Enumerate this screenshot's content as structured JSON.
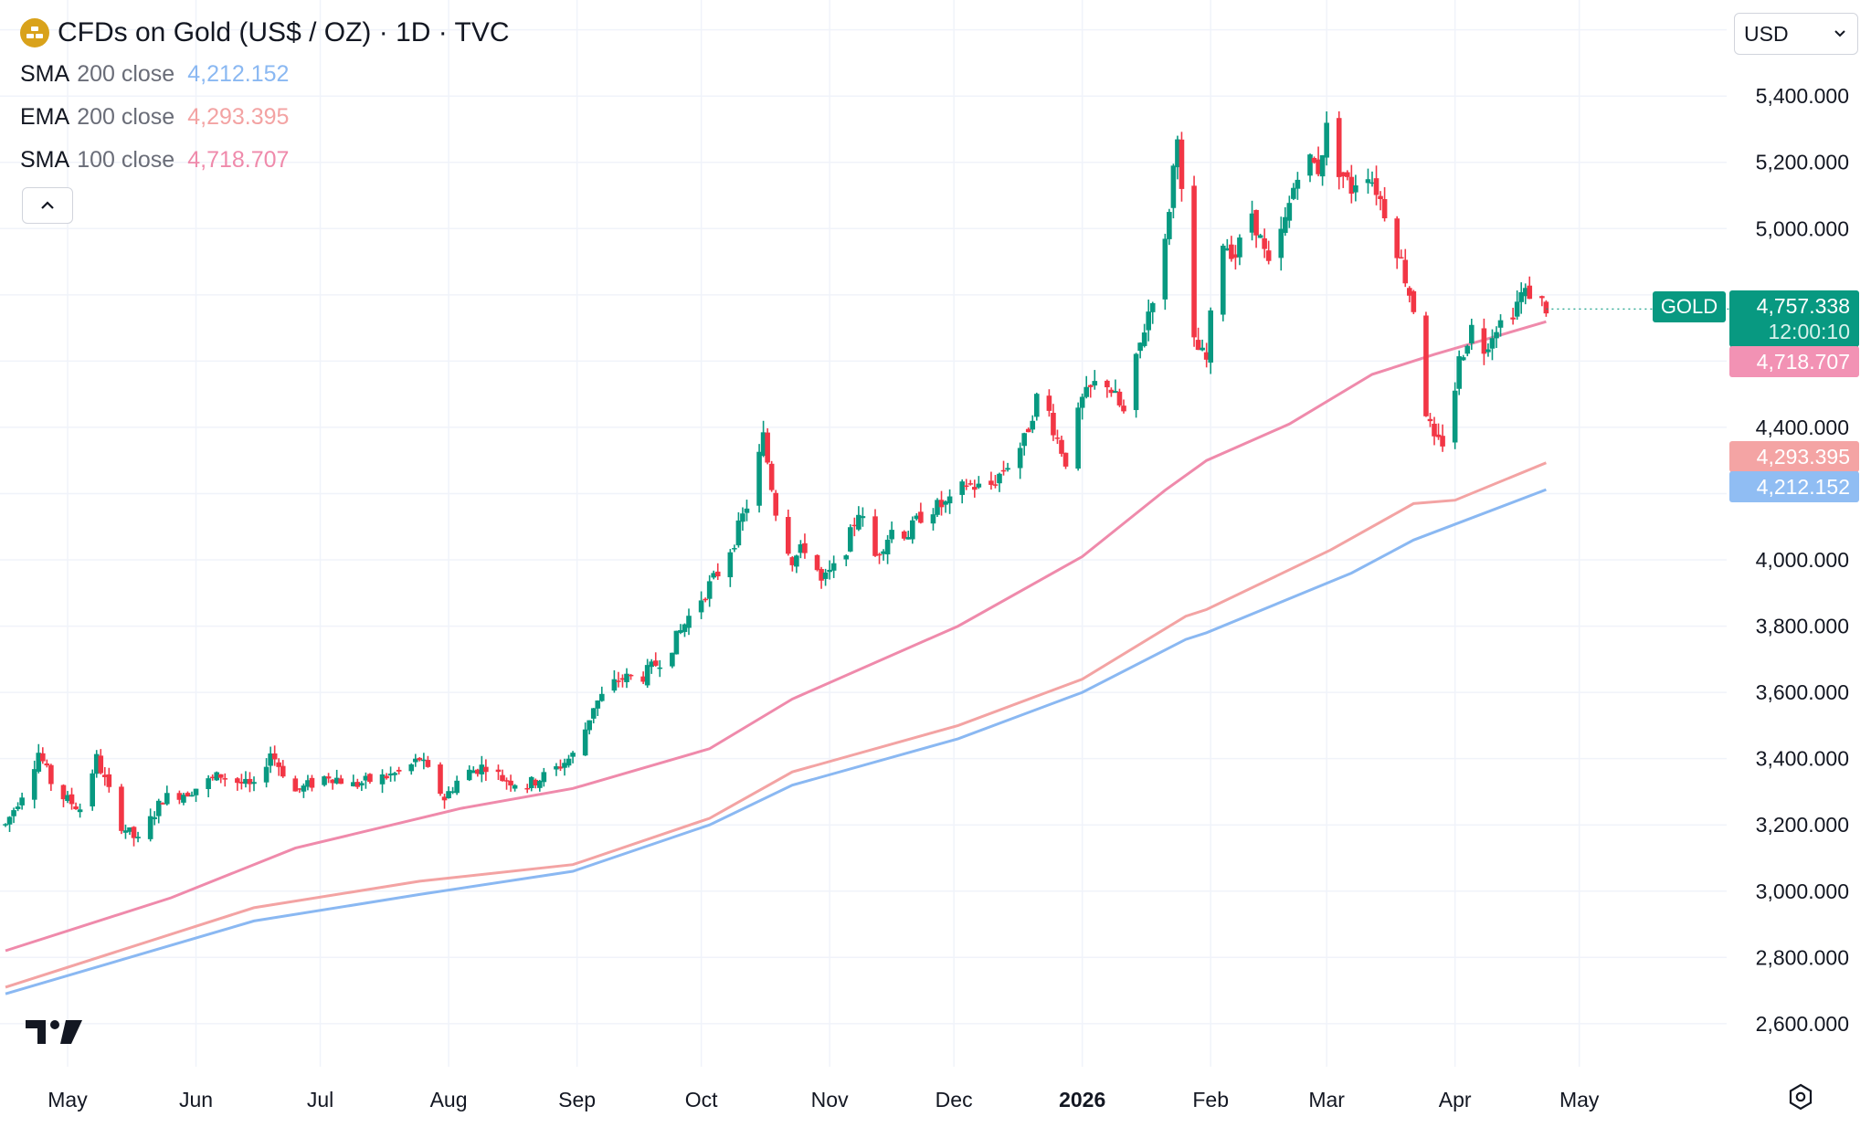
{
  "header": {
    "title": "CFDs on Gold (US$ / OZ) · 1D · TVC",
    "logo_icon": "gold-bars-icon"
  },
  "indicators": [
    {
      "name": "SMA",
      "params": "200 close",
      "value": "4,212.152",
      "color": "#8ab8f2"
    },
    {
      "name": "EMA",
      "params": "200 close",
      "value": "4,293.395",
      "color": "#f3a3a3"
    },
    {
      "name": "SMA",
      "params": "100 close",
      "value": "4,718.707",
      "color": "#ef8aab"
    }
  ],
  "currency": {
    "label": "USD"
  },
  "tags": {
    "symbol": "GOLD",
    "last_price": "4,757.338",
    "countdown": "12:00:10",
    "sma100": "4,718.707",
    "ema200": "4,293.395",
    "sma200": "4,212.152"
  },
  "colors": {
    "up": "#089981",
    "down": "#f23645",
    "sma200": "#8ab8f2",
    "ema200": "#f3a3a3",
    "sma100": "#ef8aab",
    "tag_sma100": "#f292b4",
    "tag_ema200": "#f4a4a4",
    "tag_sma200": "#90bdf3"
  },
  "chart_data": {
    "type": "candlestick",
    "title": "CFDs on Gold (US$ / OZ) · 1D · TVC",
    "y_ticks": [
      2600,
      2800,
      3000,
      3200,
      3400,
      3600,
      3800,
      4000,
      4400,
      5000,
      5200,
      5400
    ],
    "y_tick_labels": [
      "2,600.000",
      "2,800.000",
      "3,000.000",
      "3,200.000",
      "3,400.000",
      "3,600.000",
      "3,800.000",
      "4,000.000",
      "4,400.000",
      "5,000.000",
      "5,200.000",
      "5,400.000"
    ],
    "x_labels": [
      {
        "label": "May",
        "day": 15,
        "bold": false
      },
      {
        "label": "Jun",
        "day": 46,
        "bold": false
      },
      {
        "label": "Jul",
        "day": 76,
        "bold": false
      },
      {
        "label": "Aug",
        "day": 107,
        "bold": false
      },
      {
        "label": "Sep",
        "day": 138,
        "bold": false
      },
      {
        "label": "Oct",
        "day": 168,
        "bold": false
      },
      {
        "label": "Nov",
        "day": 199,
        "bold": false
      },
      {
        "label": "Dec",
        "day": 229,
        "bold": false
      },
      {
        "label": "2026",
        "day": 260,
        "bold": true
      },
      {
        "label": "Feb",
        "day": 291,
        "bold": false
      },
      {
        "label": "Mar",
        "day": 319,
        "bold": false
      },
      {
        "label": "Apr",
        "day": 350,
        "bold": false
      },
      {
        "label": "May",
        "day": 380,
        "bold": false
      }
    ],
    "y_range": [
      2470,
      5690
    ],
    "x_day_range": [
      0,
      420
    ],
    "last_price": 4757.338,
    "anchors": [
      [
        0,
        3200
      ],
      [
        5,
        3320
      ],
      [
        8,
        3420
      ],
      [
        12,
        3300
      ],
      [
        18,
        3250
      ],
      [
        22,
        3400
      ],
      [
        28,
        3200
      ],
      [
        32,
        3150
      ],
      [
        38,
        3280
      ],
      [
        44,
        3300
      ],
      [
        52,
        3350
      ],
      [
        60,
        3310
      ],
      [
        64,
        3420
      ],
      [
        70,
        3300
      ],
      [
        78,
        3350
      ],
      [
        84,
        3320
      ],
      [
        90,
        3340
      ],
      [
        96,
        3360
      ],
      [
        100,
        3400
      ],
      [
        106,
        3280
      ],
      [
        110,
        3350
      ],
      [
        116,
        3380
      ],
      [
        120,
        3340
      ],
      [
        126,
        3320
      ],
      [
        132,
        3360
      ],
      [
        138,
        3420
      ],
      [
        142,
        3560
      ],
      [
        148,
        3640
      ],
      [
        154,
        3650
      ],
      [
        160,
        3720
      ],
      [
        166,
        3850
      ],
      [
        172,
        3960
      ],
      [
        176,
        4060
      ],
      [
        180,
        4200
      ],
      [
        183,
        4370
      ],
      [
        186,
        4150
      ],
      [
        190,
        4000
      ],
      [
        194,
        4050
      ],
      [
        197,
        3930
      ],
      [
        202,
        4000
      ],
      [
        206,
        4150
      ],
      [
        210,
        4010
      ],
      [
        214,
        4090
      ],
      [
        218,
        4080
      ],
      [
        222,
        4150
      ],
      [
        228,
        4170
      ],
      [
        232,
        4230
      ],
      [
        237,
        4210
      ],
      [
        242,
        4290
      ],
      [
        246,
        4360
      ],
      [
        250,
        4530
      ],
      [
        253,
        4400
      ],
      [
        256,
        4300
      ],
      [
        260,
        4480
      ],
      [
        265,
        4560
      ],
      [
        270,
        4440
      ],
      [
        274,
        4650
      ],
      [
        280,
        4950
      ],
      [
        283,
        5300
      ],
      [
        285,
        4900
      ],
      [
        287,
        4650
      ],
      [
        290,
        4600
      ],
      [
        293,
        4980
      ],
      [
        297,
        4920
      ],
      [
        301,
        5050
      ],
      [
        305,
        4880
      ],
      [
        309,
        5020
      ],
      [
        313,
        5230
      ],
      [
        317,
        5180
      ],
      [
        319,
        5300
      ],
      [
        322,
        5180
      ],
      [
        325,
        5120
      ],
      [
        328,
        5200
      ],
      [
        331,
        5120
      ],
      [
        334,
        5020
      ],
      [
        337,
        4900
      ],
      [
        340,
        4760
      ],
      [
        343,
        4450
      ],
      [
        345,
        4350
      ],
      [
        348,
        4360
      ],
      [
        351,
        4600
      ],
      [
        354,
        4700
      ],
      [
        357,
        4640
      ],
      [
        360,
        4710
      ],
      [
        363,
        4730
      ],
      [
        366,
        4800
      ],
      [
        369,
        4810
      ],
      [
        372,
        4760
      ]
    ],
    "series": [
      {
        "name": "SMA 200 close",
        "color": "#8ab8f2",
        "value": 4212.152,
        "points": [
          [
            0,
            2690
          ],
          [
            60,
            2910
          ],
          [
            100,
            2990
          ],
          [
            137,
            3060
          ],
          [
            170,
            3200
          ],
          [
            190,
            3320
          ],
          [
            230,
            3460
          ],
          [
            260,
            3600
          ],
          [
            285,
            3760
          ],
          [
            290,
            3780
          ],
          [
            325,
            3960
          ],
          [
            340,
            4060
          ],
          [
            372,
            4212
          ]
        ]
      },
      {
        "name": "EMA 200 close",
        "color": "#f3a3a3",
        "value": 4293.395,
        "points": [
          [
            0,
            2710
          ],
          [
            60,
            2950
          ],
          [
            100,
            3030
          ],
          [
            137,
            3080
          ],
          [
            170,
            3220
          ],
          [
            190,
            3360
          ],
          [
            230,
            3500
          ],
          [
            260,
            3640
          ],
          [
            285,
            3830
          ],
          [
            290,
            3850
          ],
          [
            320,
            4030
          ],
          [
            340,
            4170
          ],
          [
            350,
            4180
          ],
          [
            372,
            4293
          ]
        ]
      },
      {
        "name": "SMA 100 close",
        "color": "#ef8aab",
        "value": 4718.707,
        "points": [
          [
            0,
            2820
          ],
          [
            40,
            2980
          ],
          [
            70,
            3130
          ],
          [
            110,
            3250
          ],
          [
            137,
            3310
          ],
          [
            170,
            3430
          ],
          [
            190,
            3580
          ],
          [
            230,
            3800
          ],
          [
            260,
            4010
          ],
          [
            280,
            4210
          ],
          [
            290,
            4300
          ],
          [
            310,
            4410
          ],
          [
            330,
            4560
          ],
          [
            345,
            4620
          ],
          [
            372,
            4719
          ]
        ]
      }
    ]
  }
}
